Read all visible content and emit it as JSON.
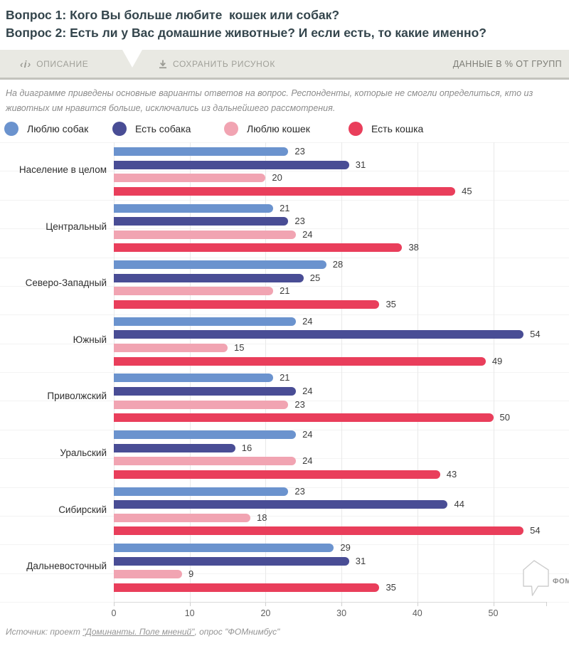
{
  "header": {
    "title_line1": "Вопрос 1: Кого Вы больше любите  кошек или собак?",
    "title_line2": "Вопрос 2: Есть ли у Вас домашние животные? И если есть, то какие именно?"
  },
  "toolbar": {
    "code_icon_text": "‹i›",
    "description_label": "ОПИСАНИЕ",
    "save_label": "СОХРАНИТЬ РИСУНОК",
    "units_label": "ДАННЫЕ В % ОТ ГРУПП"
  },
  "note": "На диаграмме приведены основные варианты ответов на вопрос. Респонденты, которые не смогли определиться, кто из животных им нравится больше, исключались из дальнейшего рассмотрения.",
  "chart_data": {
    "type": "bar",
    "orientation": "horizontal",
    "title": "",
    "xlabel": "",
    "ylabel": "",
    "xlim": [
      0,
      57
    ],
    "xticks": [
      0,
      10,
      20,
      30,
      40,
      50
    ],
    "grid": "on",
    "legend_position": "top",
    "categories": [
      "Население в целом",
      "Центральный",
      "Северо-Западный",
      "Южный",
      "Приволжский",
      "Уральский",
      "Сибирский",
      "Дальневосточный"
    ],
    "series": [
      {
        "id": "love-dogs",
        "name": "Люблю собак",
        "color": "#6b93ce",
        "values": [
          23,
          21,
          28,
          24,
          21,
          24,
          23,
          29
        ]
      },
      {
        "id": "have-dog",
        "name": "Есть собака",
        "color": "#494d95",
        "values": [
          31,
          23,
          25,
          54,
          24,
          16,
          44,
          31
        ]
      },
      {
        "id": "love-cats",
        "name": "Люблю кошек",
        "color": "#f1a4b2",
        "values": [
          20,
          24,
          21,
          15,
          23,
          24,
          18,
          9
        ]
      },
      {
        "id": "have-cat",
        "name": "Есть кошка",
        "color": "#e93e5b",
        "values": [
          45,
          38,
          35,
          49,
          50,
          43,
          54,
          35
        ]
      }
    ]
  },
  "footer": {
    "source_prefix": "Источник: проект ",
    "source_link": "\"Доминанты. Поле мнений\"",
    "source_suffix": ", опрос \"ФОМнимбус\"",
    "logo_text": "ФОМ"
  }
}
